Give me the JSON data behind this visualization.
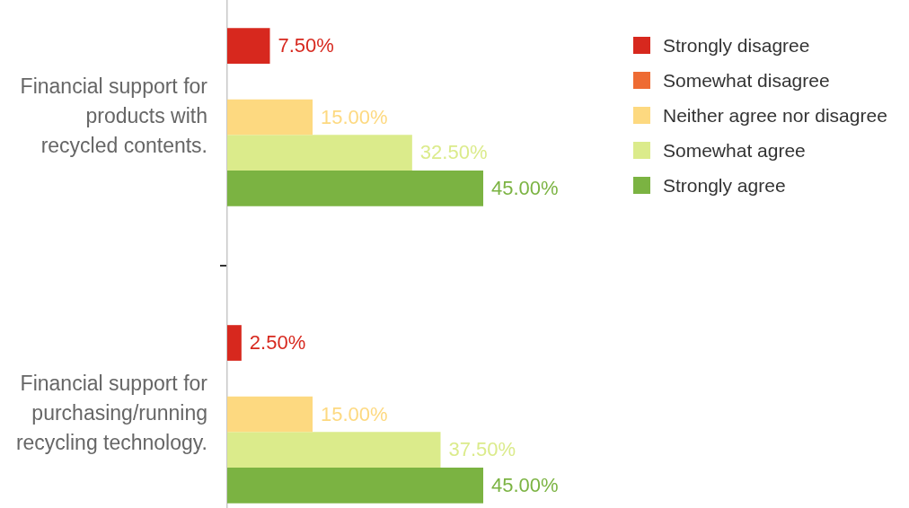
{
  "chart_data": {
    "type": "bar",
    "orientation": "horizontal",
    "legend": "top right",
    "tick_labels": "y",
    "categories": [
      "Financial support for products with recycled contents.",
      "Financial support for purchasing/running recycling technology."
    ],
    "series": [
      {
        "name": "Strongly disagree",
        "color": "#d7281e",
        "values": [
          7.5,
          2.5
        ],
        "value_labels": [
          "7.50%",
          "2.50%"
        ]
      },
      {
        "name": "Somewhat disagree",
        "color": "#ee6b33",
        "values": [
          null,
          null
        ]
      },
      {
        "name": "Neither agree nor disagree",
        "color": "#fdd980",
        "values": [
          15,
          15
        ],
        "value_labels": [
          "15.00%",
          "15.00%"
        ]
      },
      {
        "name": "Somewhat agree",
        "color": "#dbeb8b",
        "values": [
          32.5,
          37.5
        ],
        "value_labels": [
          "32.50%",
          "37.50%"
        ]
      },
      {
        "name": "Strongly agree",
        "color": "#7bb342",
        "values": [
          45,
          45
        ],
        "value_labels": [
          "45.00%",
          "45.00%"
        ]
      }
    ]
  }
}
